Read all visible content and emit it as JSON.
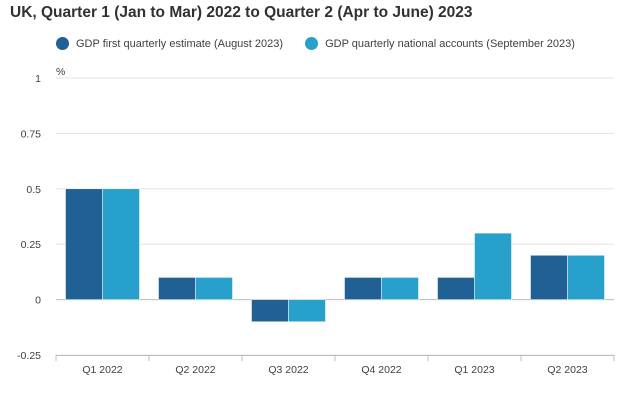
{
  "title": "UK, Quarter 1 (Jan to Mar) 2022 to Quarter 2 (Apr to June) 2023",
  "chart_data": {
    "type": "bar",
    "title": "UK, Quarter 1 (Jan to Mar) 2022 to Quarter 2 (Apr to June) 2023",
    "categories": [
      "Q1 2022",
      "Q2 2022",
      "Q3 2022",
      "Q4 2022",
      "Q1 2023",
      "Q2 2023"
    ],
    "series": [
      {
        "name": "GDP first quarterly estimate (August 2023)",
        "color": "#206095",
        "values": [
          0.5,
          0.1,
          -0.1,
          0.1,
          0.1,
          0.2
        ]
      },
      {
        "name": "GDP quarterly national accounts (September 2023)",
        "color": "#27a0cc",
        "values": [
          0.5,
          0.1,
          -0.1,
          0.1,
          0.3,
          0.2
        ]
      }
    ],
    "ylabel": "%",
    "ylim": [
      -0.25,
      1
    ],
    "yticks": [
      1,
      0.75,
      0.5,
      0.25,
      0,
      -0.25
    ],
    "ytick_labels": [
      "1",
      "0.75",
      "0.5",
      "0.25",
      "0",
      "-0.25"
    ],
    "grid": true,
    "legend_position": "top"
  }
}
